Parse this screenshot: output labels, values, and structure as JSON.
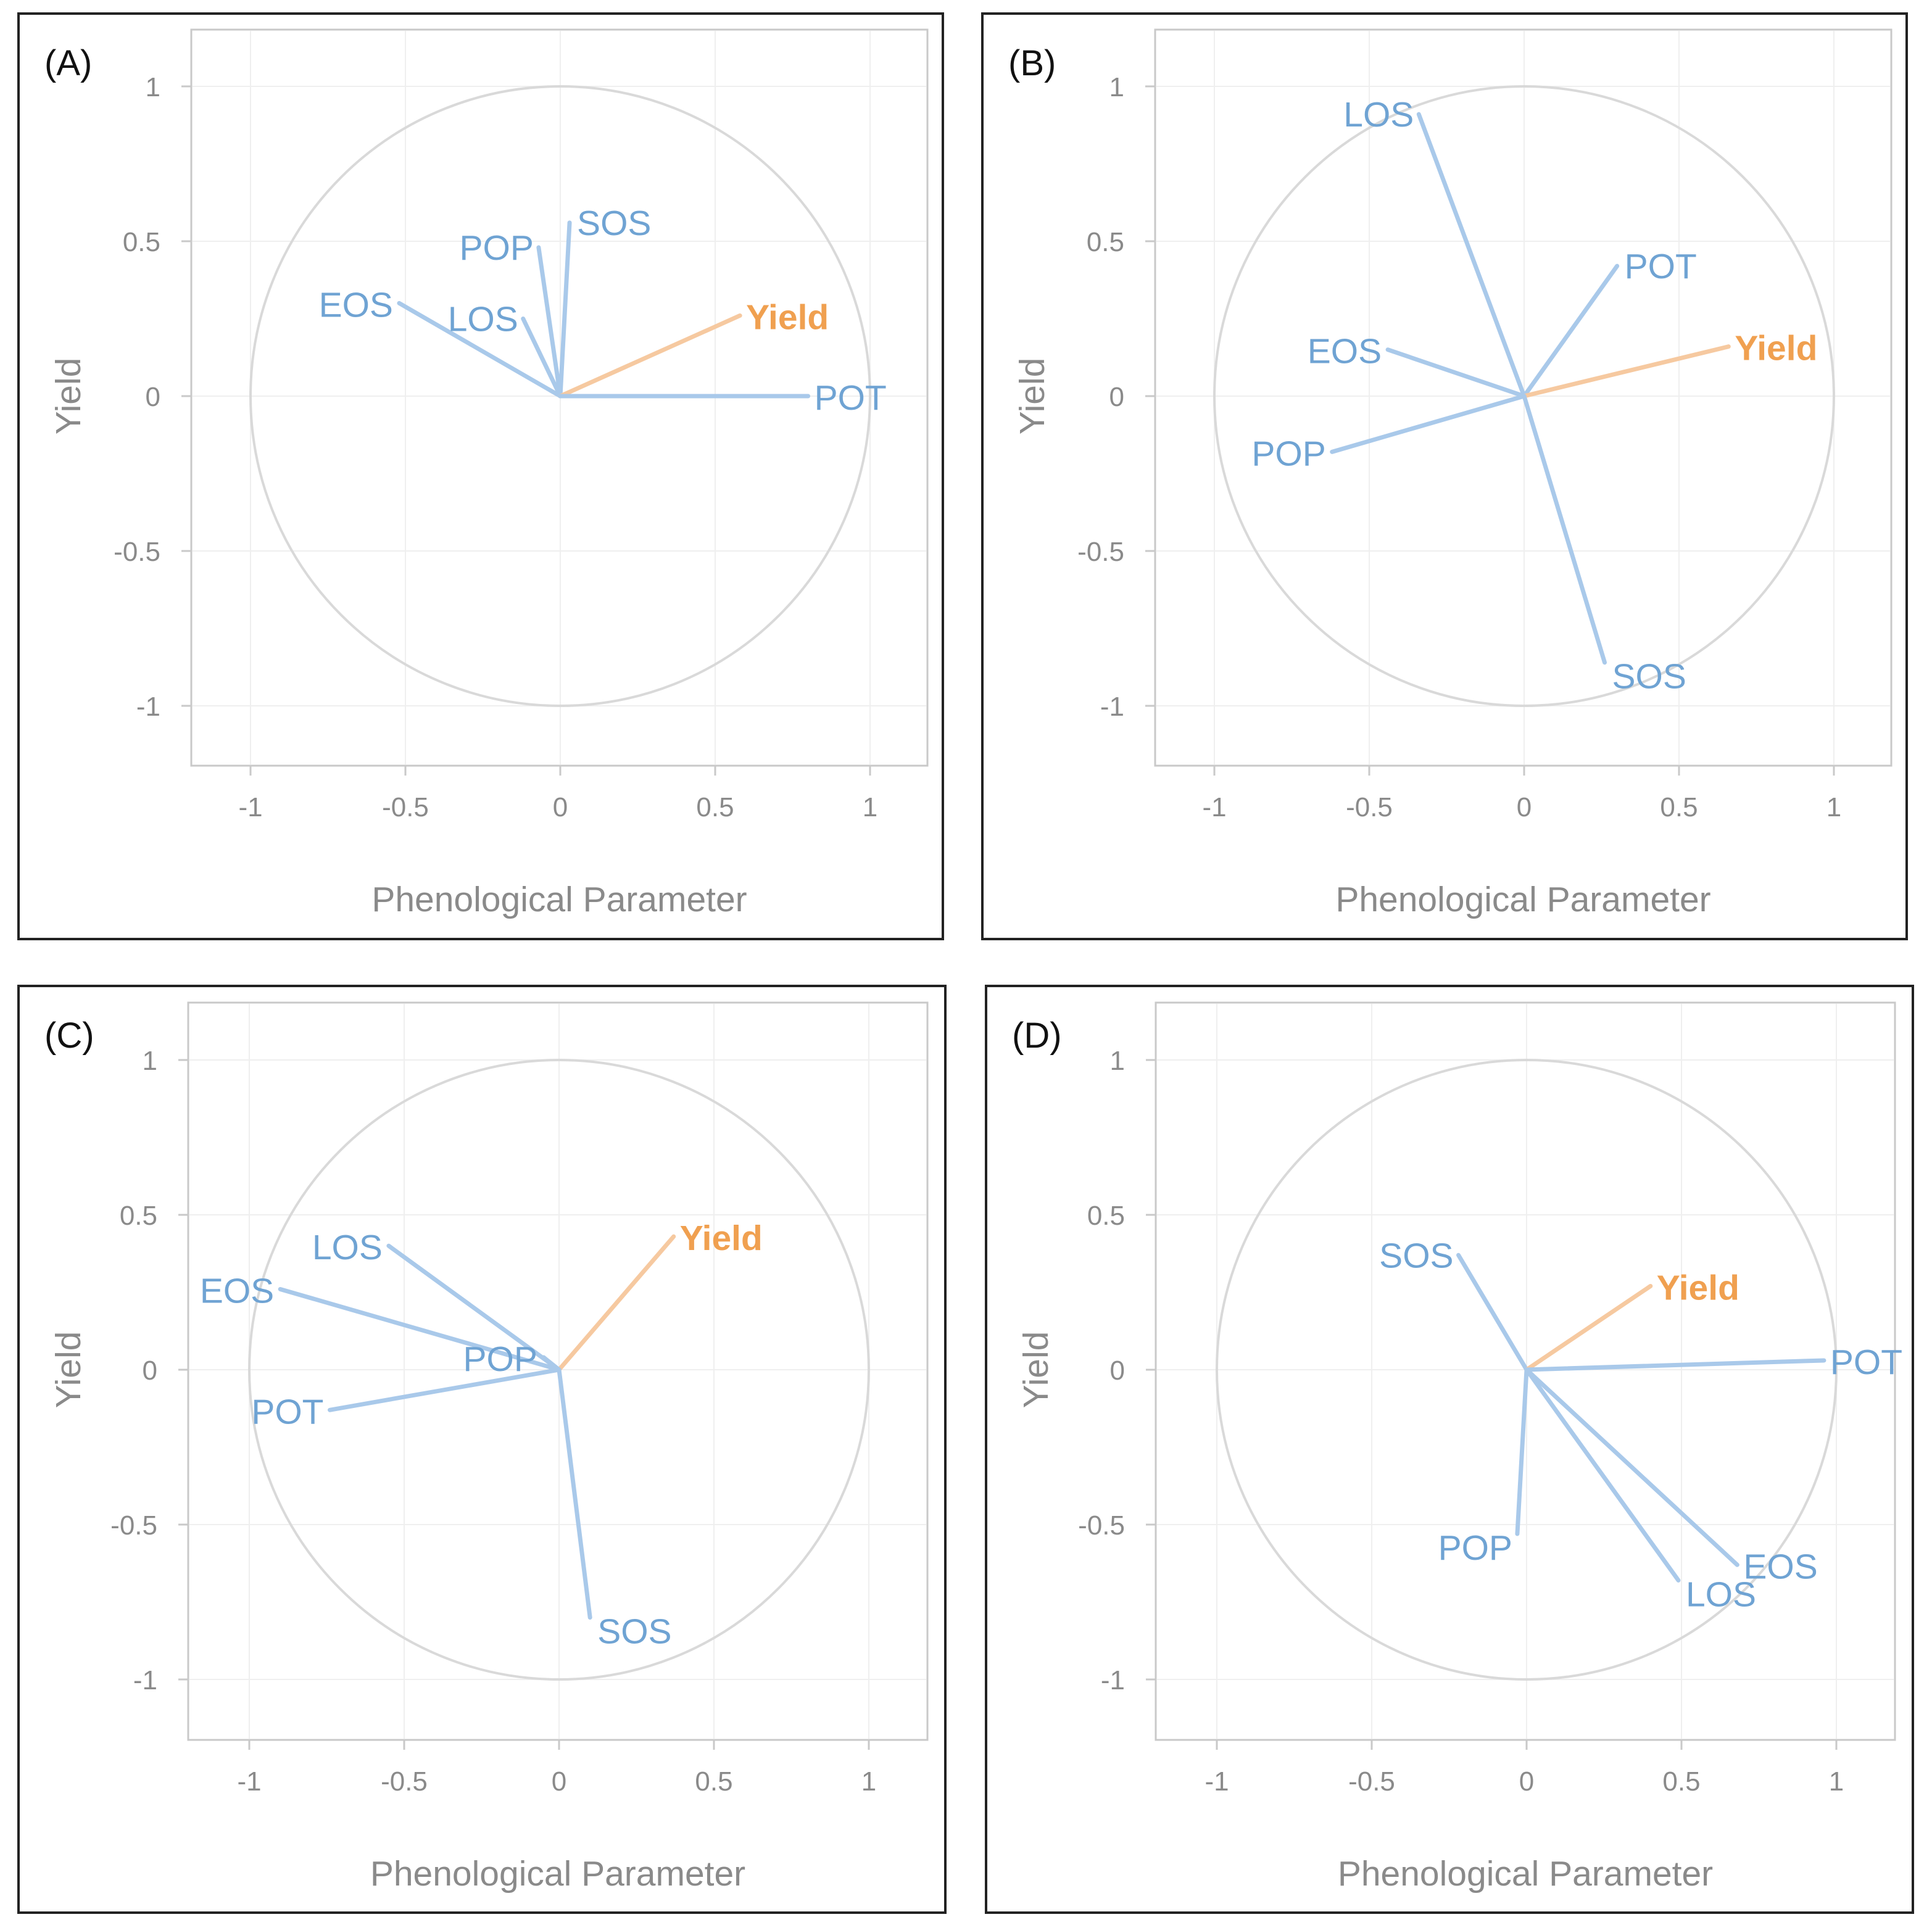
{
  "colors": {
    "variable": "#6fa3d3",
    "variable_line": "#a9c9ea",
    "target": "#f0a050",
    "target_line": "#f6c9a0",
    "circle": "#d9d9d9",
    "grid": "#efefef",
    "frame": "#c9c9c9",
    "tick_text": "#8a8a8a",
    "axis_label": "#8a8a8a",
    "border": "#222222",
    "panel_tag": "#111111"
  },
  "chart_data": [
    {
      "type": "correlation-circle",
      "panel_label": "(A)",
      "xlabel": "Phenological Parameter",
      "ylabel": "Yield",
      "xlim": [
        -1.2,
        1.2
      ],
      "ylim": [
        -1.2,
        1.2
      ],
      "xticks": [
        "-1",
        "-0.5",
        "0",
        "0.5",
        "1"
      ],
      "yticks": [
        "1",
        "0.5",
        "0",
        "-0.5",
        "-1"
      ],
      "vectors": [
        {
          "name": "SOS",
          "x": 0.03,
          "y": 0.56,
          "target": false
        },
        {
          "name": "POP",
          "x": -0.07,
          "y": 0.48,
          "target": false
        },
        {
          "name": "EOS",
          "x": -0.52,
          "y": 0.3,
          "target": false
        },
        {
          "name": "LOS",
          "x": -0.12,
          "y": 0.25,
          "target": false
        },
        {
          "name": "Yield",
          "x": 0.58,
          "y": 0.26,
          "target": true
        },
        {
          "name": "POT",
          "x": 0.8,
          "y": 0.0,
          "target": false
        }
      ]
    },
    {
      "type": "correlation-circle",
      "panel_label": "(B)",
      "xlabel": "Phenological Parameter",
      "ylabel": "Yield",
      "xlim": [
        -1.2,
        1.2
      ],
      "ylim": [
        -1.2,
        1.2
      ],
      "xticks": [
        "-1",
        "-0.5",
        "0",
        "0.5",
        "1"
      ],
      "yticks": [
        "1",
        "0.5",
        "0",
        "-0.5",
        "-1"
      ],
      "vectors": [
        {
          "name": "LOS",
          "x": -0.34,
          "y": 0.91,
          "target": false
        },
        {
          "name": "POT",
          "x": 0.3,
          "y": 0.42,
          "target": false
        },
        {
          "name": "EOS",
          "x": -0.44,
          "y": 0.15,
          "target": false
        },
        {
          "name": "Yield",
          "x": 0.66,
          "y": 0.16,
          "target": true
        },
        {
          "name": "POP",
          "x": -0.62,
          "y": -0.18,
          "target": false
        },
        {
          "name": "SOS",
          "x": 0.26,
          "y": -0.86,
          "target": false
        }
      ]
    },
    {
      "type": "correlation-circle",
      "panel_label": "(C)",
      "xlabel": "Phenological Parameter",
      "ylabel": "Yield",
      "xlim": [
        -1.2,
        1.2
      ],
      "ylim": [
        -1.2,
        1.2
      ],
      "xticks": [
        "-1",
        "-0.5",
        "0",
        "0.5",
        "1"
      ],
      "yticks": [
        "1",
        "0.5",
        "0",
        "-0.5",
        "-1"
      ],
      "vectors": [
        {
          "name": "Yield",
          "x": 0.37,
          "y": 0.43,
          "target": true
        },
        {
          "name": "LOS",
          "x": -0.55,
          "y": 0.4,
          "target": false
        },
        {
          "name": "EOS",
          "x": -0.9,
          "y": 0.26,
          "target": false
        },
        {
          "name": "POP",
          "x": -0.05,
          "y": 0.04,
          "target": false
        },
        {
          "name": "POT",
          "x": -0.74,
          "y": -0.13,
          "target": false
        },
        {
          "name": "SOS",
          "x": 0.1,
          "y": -0.8,
          "target": false
        }
      ]
    },
    {
      "type": "correlation-circle",
      "panel_label": "(D)",
      "xlabel": "Phenological Parameter",
      "ylabel": "Yield",
      "xlim": [
        -1.2,
        1.2
      ],
      "ylim": [
        -1.2,
        1.2
      ],
      "xticks": [
        "-1",
        "-0.5",
        "0",
        "0.5",
        "1"
      ],
      "yticks": [
        "1",
        "0.5",
        "0",
        "-0.5",
        "-1"
      ],
      "vectors": [
        {
          "name": "SOS",
          "x": -0.22,
          "y": 0.37,
          "target": false
        },
        {
          "name": "Yield",
          "x": 0.4,
          "y": 0.27,
          "target": true
        },
        {
          "name": "POT",
          "x": 0.96,
          "y": 0.03,
          "target": false
        },
        {
          "name": "POP",
          "x": -0.03,
          "y": -0.53,
          "target": false
        },
        {
          "name": "LOS",
          "x": 0.49,
          "y": -0.68,
          "target": false
        },
        {
          "name": "EOS",
          "x": 0.68,
          "y": -0.63,
          "target": false
        }
      ]
    }
  ]
}
